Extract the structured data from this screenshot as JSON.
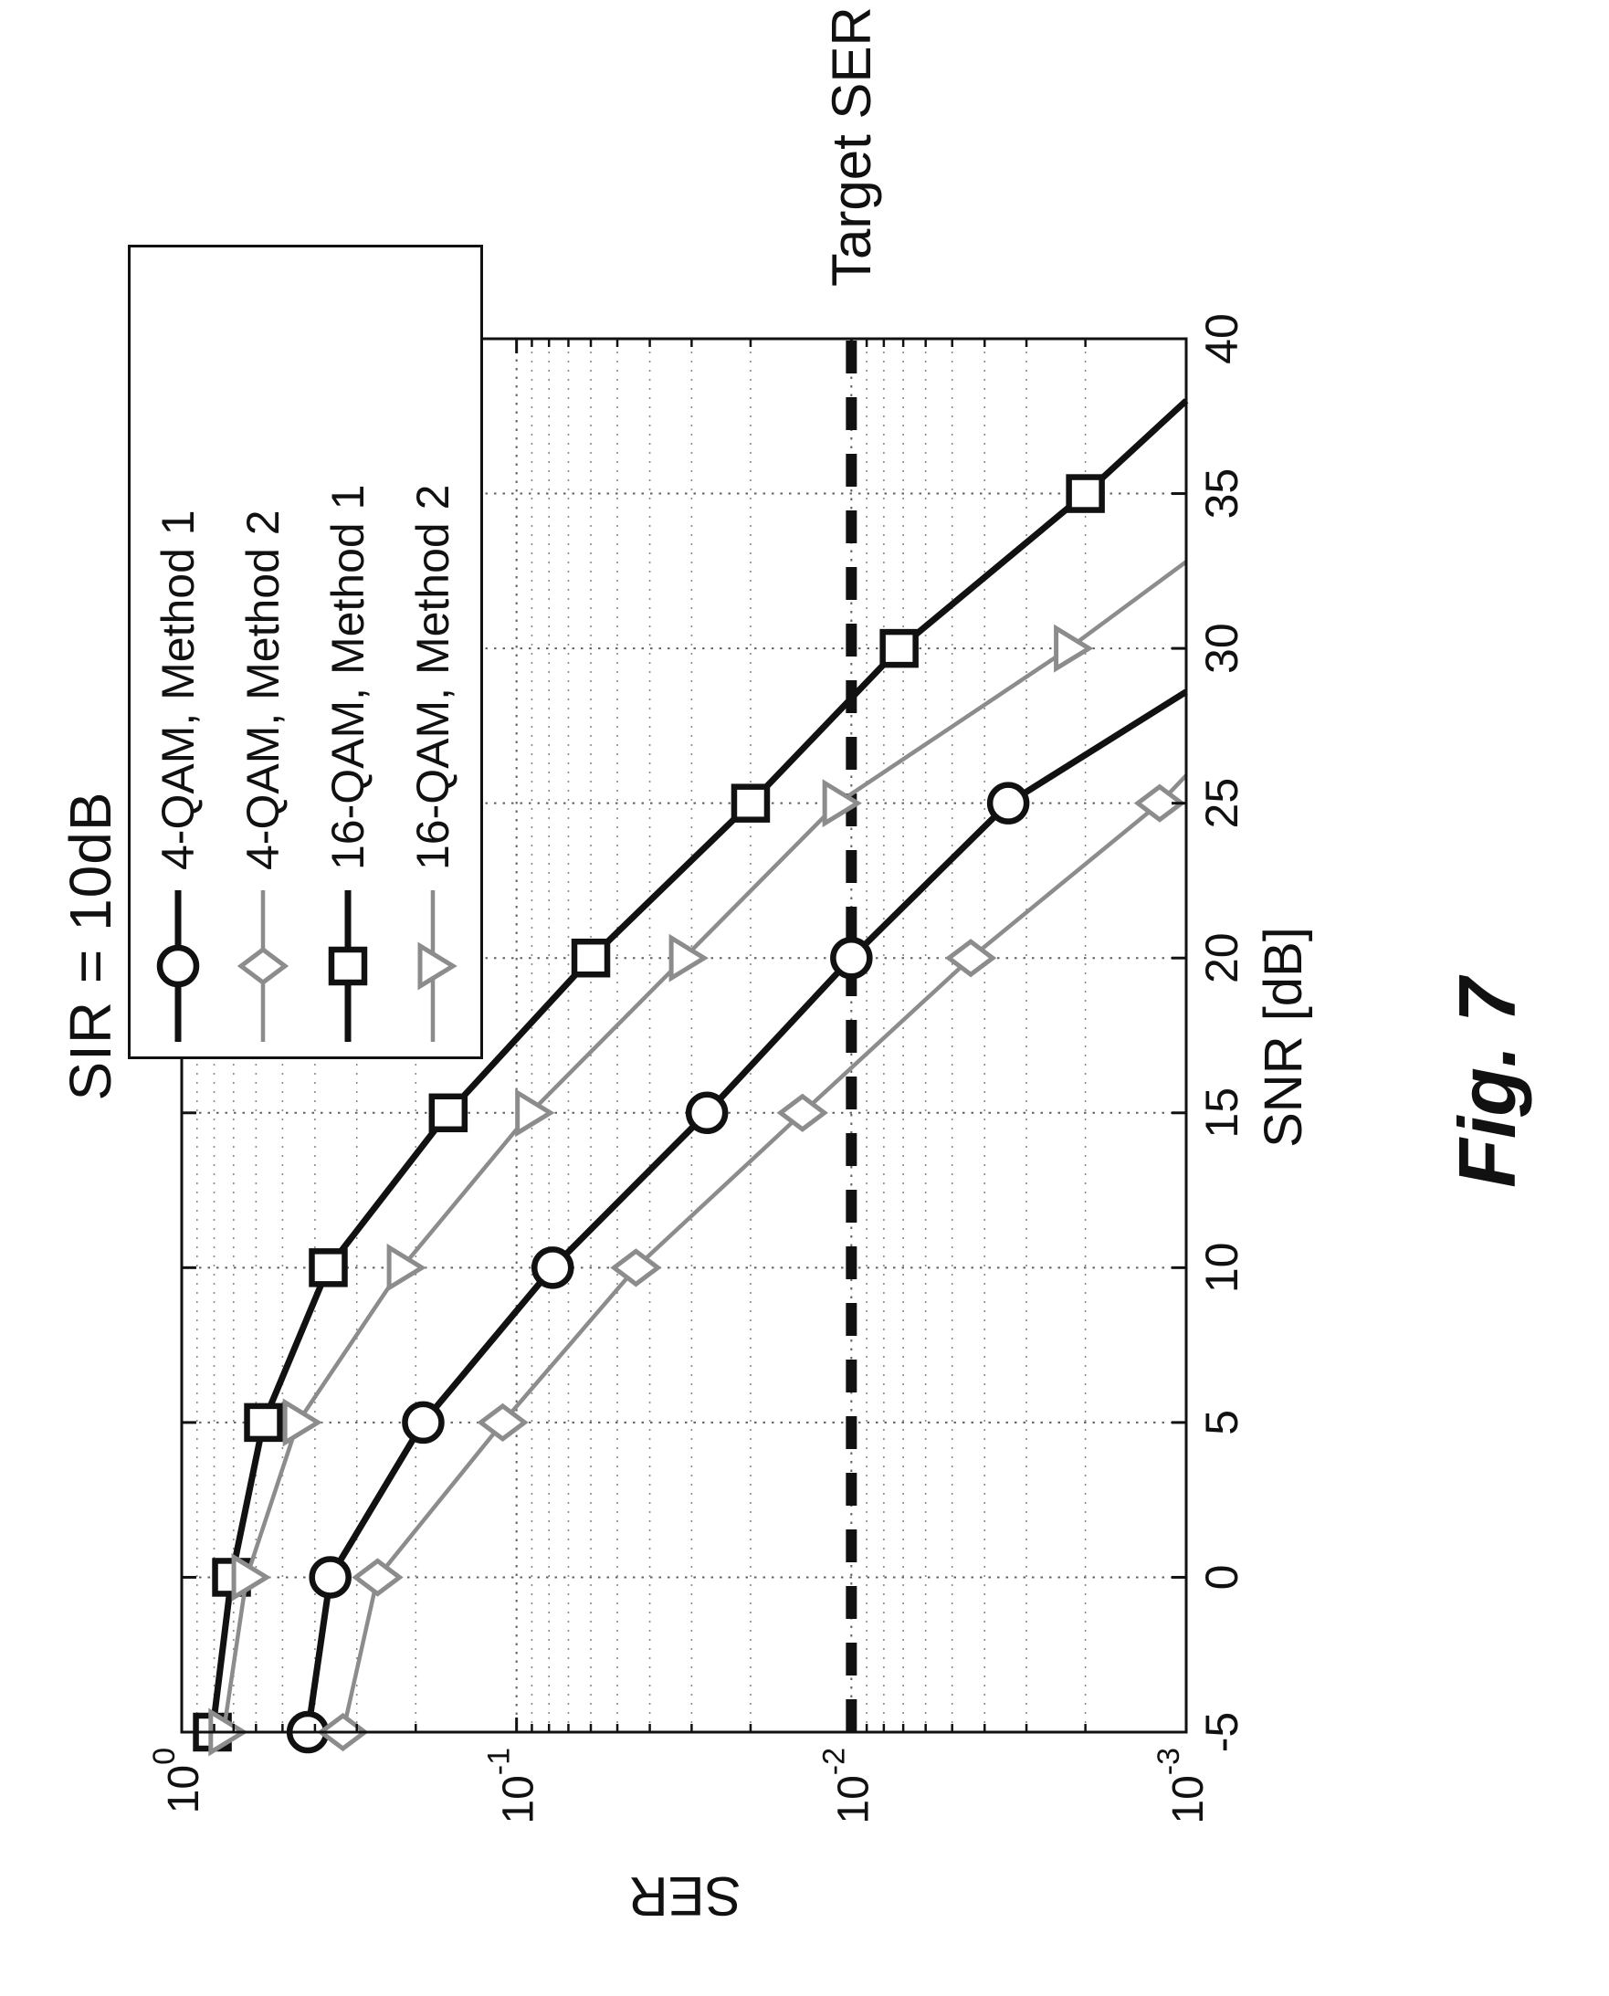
{
  "figure": {
    "caption": "Fig. 7"
  },
  "chart_data": {
    "type": "line",
    "title": "SIR = 10dB",
    "xlabel": "SNR [dB]",
    "ylabel": "SER",
    "xlim": [
      -5,
      40
    ],
    "xticks": [
      -5,
      0,
      5,
      10,
      15,
      20,
      25,
      30,
      35,
      40
    ],
    "yscale": "log",
    "ylim": [
      0.001,
      1
    ],
    "ytick_exponents": [
      0,
      -1,
      -2,
      -3
    ],
    "grid": "on",
    "legend_position": "top-right",
    "target_line": {
      "value": 0.01,
      "label": "Target SER",
      "style": "dashed-bold"
    },
    "colors": {
      "black": "#111111",
      "gray": "#8c8c8c",
      "grid_major": "#5f5f5f",
      "grid_minor": "#8a8a8a"
    },
    "series": [
      {
        "name": "4-QAM, Method 1",
        "marker": "circle",
        "color_key": "black",
        "width": 7,
        "points": [
          [
            -5,
            0.42
          ],
          [
            0,
            0.36
          ],
          [
            5,
            0.19
          ],
          [
            10,
            0.078
          ],
          [
            15,
            0.027
          ],
          [
            20,
            0.01
          ],
          [
            25,
            0.0034
          ],
          [
            28.6,
            0.001
          ]
        ]
      },
      {
        "name": "4-QAM, Method 2",
        "marker": "diamond",
        "color_key": "gray",
        "width": 4.5,
        "points": [
          [
            -5,
            0.33
          ],
          [
            0,
            0.26
          ],
          [
            5,
            0.11
          ],
          [
            10,
            0.044
          ],
          [
            15,
            0.014
          ],
          [
            20,
            0.0044
          ],
          [
            25,
            0.0012
          ],
          [
            25.9,
            0.001
          ]
        ]
      },
      {
        "name": "16-QAM, Method 1",
        "marker": "square",
        "color_key": "black",
        "width": 7,
        "points": [
          [
            -5,
            0.81
          ],
          [
            0,
            0.71
          ],
          [
            5,
            0.57
          ],
          [
            10,
            0.365
          ],
          [
            15,
            0.16
          ],
          [
            20,
            0.06
          ],
          [
            25,
            0.02
          ],
          [
            30,
            0.0072
          ],
          [
            35,
            0.002
          ],
          [
            38,
            0.001
          ]
        ]
      },
      {
        "name": "16-QAM, Method 2",
        "marker": "triangle-down",
        "color_key": "gray",
        "width": 4.5,
        "points": [
          [
            -5,
            0.75
          ],
          [
            0,
            0.64
          ],
          [
            5,
            0.45
          ],
          [
            10,
            0.22
          ],
          [
            15,
            0.091
          ],
          [
            20,
            0.0316
          ],
          [
            25,
            0.011
          ],
          [
            30,
            0.00224
          ],
          [
            32.8,
            0.001
          ]
        ]
      }
    ]
  }
}
